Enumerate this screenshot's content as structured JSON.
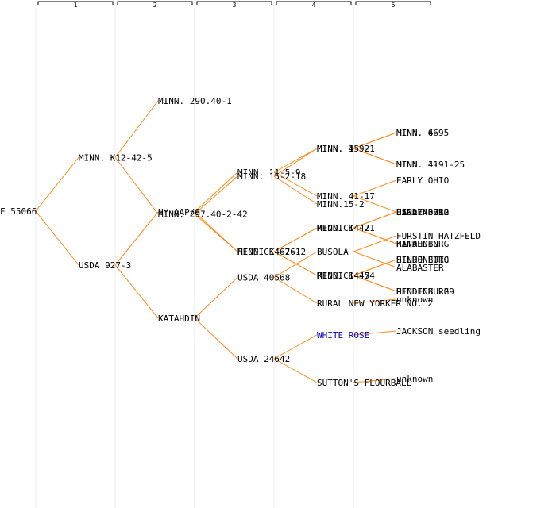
{
  "generations": [
    "1",
    "2",
    "3",
    "4",
    "5"
  ],
  "colors": {
    "edge": "#ff8c1a",
    "column_line": "#ececec",
    "text": "#000000",
    "link": "#0000cc"
  },
  "tree": {
    "label": "F 55066",
    "children": [
      {
        "label": "MINN. K12-42-5",
        "children": [
          {
            "label": "MINN. 290.40-1"
          },
          {
            "label": "MINN. 297.40-2-42",
            "children": [
              {
                "label": "MINN. 15-2-18",
                "children": [
                  {
                    "label": "MINN. 15-2",
                    "children": [
                      {
                        "label": "MINN. 66-5"
                      },
                      {
                        "label": "MINN. 11-1-25"
                      }
                    ]
                  },
                  {
                    "label": "MINN.15-2"
                  }
                ]
              },
              {
                "label": "MINN. 14-7-1",
                "children": [
                  {
                    "label": "MINN. 14-7",
                    "children": [
                      {
                        "label": "HINDENBURG"
                      },
                      {
                        "label": "HINDENBURG"
                      }
                    ]
                  },
                  {
                    "label": "MINN. 14-7",
                    "children": [
                      {
                        "label": "HINDENBURG"
                      },
                      {
                        "label": "HINDENBURG"
                      }
                    ]
                  }
                ]
              }
            ]
          }
        ]
      },
      {
        "label": "USDA 927-3",
        "children": [
          {
            "label": "NY AAP/9",
            "children": [
              {
                "label": "MINN. 11-5-9",
                "children": [
                  {
                    "label": "MINN. 4-9-1",
                    "children": [
                      {
                        "label": "MINN. 4-9"
                      },
                      {
                        "label": "MINN. 4-9"
                      }
                    ]
                  },
                  {
                    "label": "MINN. 41-17",
                    "children": [
                      {
                        "label": "EARLY OHIO"
                      },
                      {
                        "label": "EARLY OHIO"
                      }
                    ]
                  }
                ]
              },
              {
                "label": "REDDICK 626-2",
                "children": [
                  {
                    "label": "REDDICK 421",
                    "children": [
                      {
                        "label": "USDA 43752"
                      },
                      {
                        "label": "KATAHDIN"
                      }
                    ]
                  },
                  {
                    "label": "REDDICK 454",
                    "children": [
                      {
                        "label": "SILHONETTO"
                      },
                      {
                        "label": "REDDICK 229"
                      }
                    ]
                  }
                ]
              }
            ]
          },
          {
            "label": "KATAHDIN",
            "children": [
              {
                "label": "USDA 40568",
                "children": [
                  {
                    "label": "BUSOLA",
                    "children": [
                      {
                        "label": "FURSTIN HATZFELD"
                      },
                      {
                        "label": "ALABASTER"
                      }
                    ]
                  },
                  {
                    "label": "RURAL NEW YORKER NO. 2",
                    "children": [
                      {
                        "label": "unknown"
                      }
                    ]
                  }
                ]
              },
              {
                "label": "USDA 24642",
                "children": [
                  {
                    "label": "WHITE ROSE",
                    "link": true,
                    "children": [
                      {
                        "label": "JACKSON seedling"
                      }
                    ]
                  },
                  {
                    "label": "SUTTON'S FLOURBALL",
                    "children": [
                      {
                        "label": "unknown"
                      }
                    ]
                  }
                ]
              }
            ]
          }
        ]
      }
    ]
  }
}
